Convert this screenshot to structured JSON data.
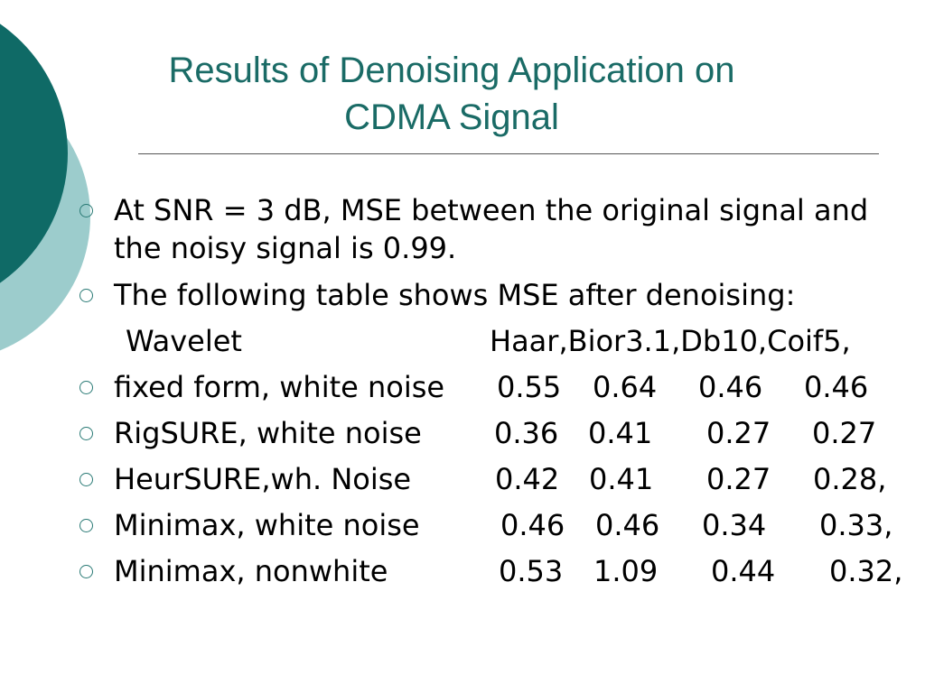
{
  "slide": {
    "title_line1": "Results of Denoising Application on",
    "title_line2": "CDMA Signal"
  },
  "bullets": [
    {
      "text": "At SNR = 3 dB, MSE between the original signal and the noisy signal is 0.99."
    },
    {
      "text": "The following table shows MSE after denoising:"
    }
  ],
  "table": {
    "header": {
      "label": "Wavelet",
      "value": "Haar,Bior3.1,Db10,Coif5,"
    },
    "rows": [
      {
        "label": "fixed form, white noise",
        "values": [
          "0.55",
          "0.64",
          "0.46",
          "0.46"
        ]
      },
      {
        "label": "RigSURE, white noise",
        "values": [
          "0.36",
          "0.41",
          "0.27",
          "0.27"
        ]
      },
      {
        "label": "HeurSURE,wh. Noise",
        "values": [
          "0.42",
          "0.41",
          "0.27",
          "0.28,"
        ]
      },
      {
        "label": "Minimax, white noise",
        "values": [
          "0.46",
          "0.46",
          "0.34",
          "0.33,"
        ]
      },
      {
        "label": "Minimax, nonwhite",
        "values": [
          "0.53",
          "1.09",
          "0.44",
          "0.32,"
        ]
      }
    ]
  },
  "theme": {
    "accent_dark": "#0f6a66",
    "accent_light": "#9ccccc",
    "title_color": "#1a6b66"
  }
}
